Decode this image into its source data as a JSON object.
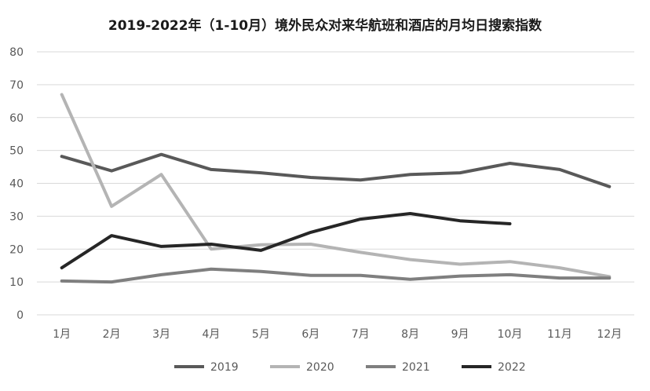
{
  "chart_data": {
    "type": "line",
    "title": "2019-2022年（1-10月）境外民众对来华航班和酒店的月均日搜索指数",
    "xlabel": "",
    "ylabel": "",
    "categories": [
      "1月",
      "2月",
      "3月",
      "4月",
      "5月",
      "6月",
      "7月",
      "8月",
      "9月",
      "10月",
      "11月",
      "12月"
    ],
    "ylim": [
      0,
      80
    ],
    "yticks": [
      0,
      10,
      20,
      30,
      40,
      50,
      60,
      70,
      80
    ],
    "grid": true,
    "legend_position": "bottom",
    "series": [
      {
        "name": "2019",
        "color": "#595959",
        "values": [
          48.2,
          43.8,
          48.8,
          44.2,
          43.2,
          41.8,
          41.0,
          42.7,
          43.2,
          46.1,
          44.2,
          39.0
        ]
      },
      {
        "name": "2020",
        "color": "#b4b4b4",
        "values": [
          67.0,
          33.0,
          42.7,
          20.0,
          21.3,
          21.5,
          19.0,
          16.8,
          15.4,
          16.2,
          14.3,
          11.6
        ]
      },
      {
        "name": "2021",
        "color": "#7f7f7f",
        "values": [
          10.3,
          10.0,
          12.2,
          13.9,
          13.2,
          12.0,
          12.0,
          10.8,
          11.8,
          12.2,
          11.2,
          11.2
        ]
      },
      {
        "name": "2022",
        "color": "#262626",
        "values": [
          14.3,
          24.1,
          20.8,
          21.5,
          19.6,
          25.1,
          29.1,
          30.8,
          28.6,
          27.7,
          null,
          null
        ]
      }
    ]
  }
}
